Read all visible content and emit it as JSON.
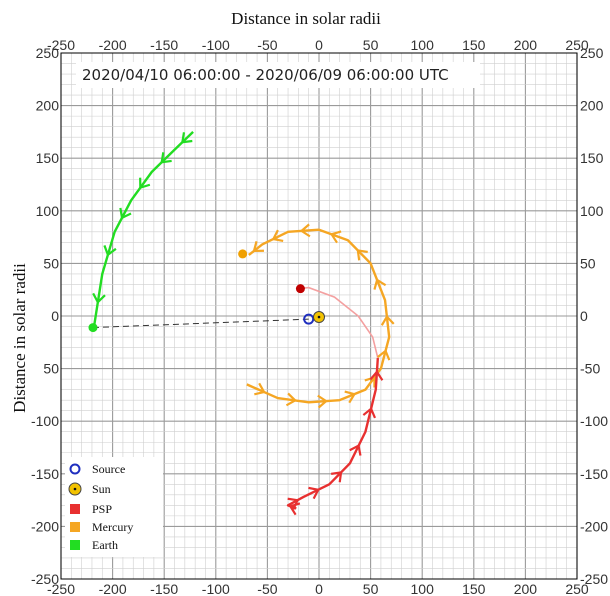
{
  "chart_data": {
    "type": "line",
    "title": "Distance in solar radii",
    "xlabel": "Distance in solar radii",
    "ylabel": "Distance in solar radii",
    "date_range": "2020/04/10 06:00:00 - 2020/06/09 06:00:00 UTC",
    "xlim": [
      -250,
      250
    ],
    "ylim": [
      -250,
      250
    ],
    "x_ticks": [
      "-250",
      "-200",
      "-150",
      "-100",
      "-50",
      "0",
      "50",
      "100",
      "150",
      "200",
      "250"
    ],
    "y_ticks_left": [
      "250",
      "200",
      "150",
      "100",
      "50",
      "0",
      "50",
      "-100",
      "-150",
      "-200",
      "-250"
    ],
    "y_ticks_right": [
      "250",
      "200",
      "150",
      "100",
      "50",
      "0",
      "-50",
      "-100",
      "-150",
      "-200",
      "-250"
    ],
    "grid": true,
    "legend_position": "bottom-left",
    "legend": [
      "Source",
      "Sun",
      "PSP",
      "Mercury",
      "Earth"
    ],
    "colors": {
      "source": "#1f2fbf",
      "sun": "#f2c200",
      "psp": "#e83030",
      "psp_trail": "#f4a0a0",
      "mercury": "#f5a623",
      "earth": "#22dd22",
      "link": "#333333"
    },
    "series": [
      {
        "name": "Earth",
        "x": [
          -122,
          -140,
          -162,
          -182,
          -198,
          -210,
          -218
        ],
        "y": [
          175,
          158,
          137,
          110,
          80,
          40,
          -10
        ]
      },
      {
        "name": "Mercury",
        "x": [
          -70,
          -40,
          -10,
          20,
          45,
          60,
          68,
          64,
          50,
          28,
          0,
          -30,
          -55,
          -68
        ],
        "y": [
          -65,
          -78,
          -82,
          -80,
          -70,
          -50,
          -20,
          15,
          50,
          72,
          82,
          80,
          68,
          58
        ]
      },
      {
        "name": "PSP",
        "x": [
          -22,
          -30,
          -15,
          10,
          30,
          45,
          55,
          57,
          52,
          38,
          15,
          -10,
          -20
        ],
        "y": [
          -183,
          -180,
          -172,
          -160,
          -140,
          -110,
          -70,
          -40,
          -20,
          0,
          18,
          27,
          26
        ]
      }
    ],
    "markers": [
      {
        "name": "Source",
        "x": -10,
        "y": -3
      },
      {
        "name": "Sun",
        "x": 0,
        "y": -1
      },
      {
        "name": "PSP",
        "x": -18,
        "y": 26
      },
      {
        "name": "Mercury",
        "x": -74,
        "y": 59
      },
      {
        "name": "Earth",
        "x": -219,
        "y": -11
      }
    ]
  }
}
